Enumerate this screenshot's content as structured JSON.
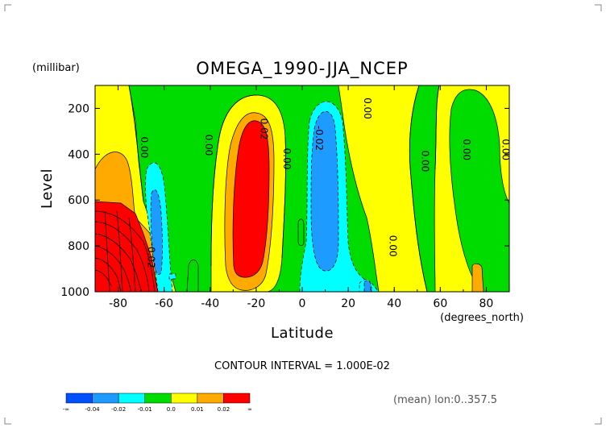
{
  "chart_data": {
    "type": "heatmap",
    "title": "OMEGA_1990-JJA_NCEP",
    "xlabel": "Latitude",
    "ylabel": "Level",
    "x_units": "(degrees_north)",
    "y_units": "(millibar)",
    "xlim": [
      -90,
      90
    ],
    "ylim": [
      1000,
      100
    ],
    "x_ticks": [
      "-80",
      "-60",
      "-40",
      "-20",
      "0",
      "20",
      "40",
      "60",
      "80"
    ],
    "x_tick_values": [
      -80,
      -60,
      -40,
      -20,
      0,
      20,
      40,
      60,
      80
    ],
    "y_ticks": [
      "200",
      "400",
      "600",
      "800",
      "1000"
    ],
    "y_tick_values": [
      200,
      400,
      600,
      800,
      1000
    ],
    "contour_interval_text": "CONTOUR INTERVAL = 1.000E-02",
    "footer_text": "(mean) lon:0..357.5",
    "colorbar": {
      "colors": [
        "#0050ff",
        "#1e9bff",
        "#00ffff",
        "#00dc00",
        "#ffff00",
        "#ffaa00",
        "#ff0000"
      ],
      "labels": [
        "-∞",
        "-0.04",
        "-0.02",
        "-0.01",
        "0.0",
        "0.01",
        "0.02",
        "∞"
      ]
    },
    "contour_labels": [
      {
        "text": "0.00",
        "lat": -70,
        "lev": 370
      },
      {
        "text": "0.00",
        "lat": -42,
        "lev": 360
      },
      {
        "text": "0.02",
        "lat": -18,
        "lev": 290
      },
      {
        "text": "0.00",
        "lat": -8,
        "lev": 420
      },
      {
        "text": "-0.02",
        "lat": 6,
        "lev": 330
      },
      {
        "text": "0.00",
        "lat": 27,
        "lev": 200
      },
      {
        "text": "0.00",
        "lat": 38,
        "lev": 800
      },
      {
        "text": "0.00",
        "lat": 52,
        "lev": 430
      },
      {
        "text": "0.00",
        "lat": 70,
        "lev": 380
      },
      {
        "text": "0.00",
        "lat": 87,
        "lev": 380
      },
      {
        "text": "0.02",
        "lat": -67,
        "lev": 850
      }
    ]
  }
}
